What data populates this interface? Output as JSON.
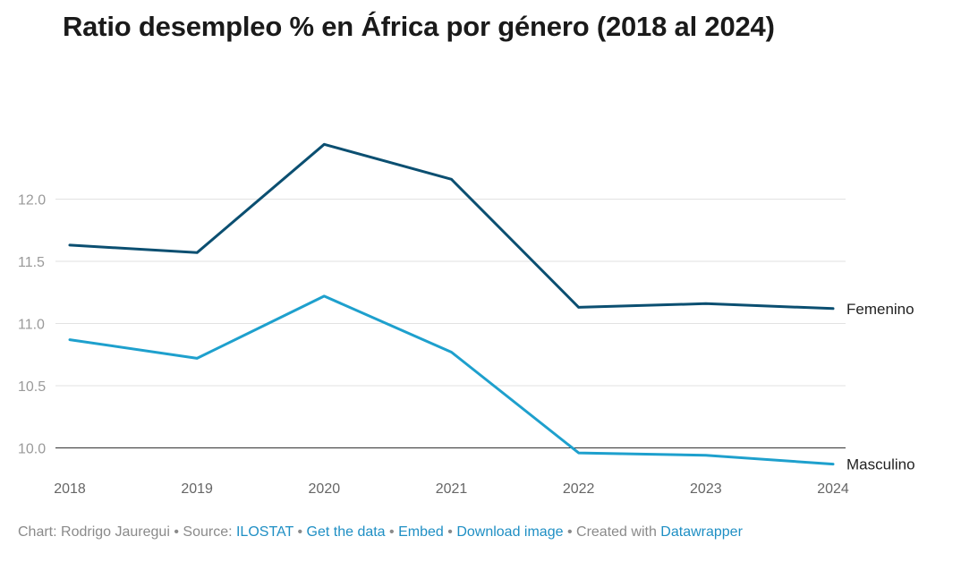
{
  "chart_data": {
    "type": "line",
    "title": "Ratio desempleo % en África por género (2018 al 2024)",
    "x": [
      "2018",
      "2019",
      "2020",
      "2021",
      "2022",
      "2023",
      "2024"
    ],
    "series": [
      {
        "name": "Femenino",
        "color": "#0b4f71",
        "values": [
          11.63,
          11.57,
          12.44,
          12.16,
          11.13,
          11.16,
          11.12
        ]
      },
      {
        "name": "Masculino",
        "color": "#1ea0cd",
        "values": [
          10.87,
          10.72,
          11.22,
          10.77,
          9.96,
          9.94,
          9.87
        ]
      }
    ],
    "yticks": [
      "10.0",
      "10.5",
      "11.0",
      "11.5",
      "12.0"
    ],
    "ylim": [
      10.0,
      12.5
    ],
    "grid": true,
    "legend": "direct labels at line ends"
  },
  "footer": {
    "chart_by": "Chart: Rodrigo Jauregui",
    "source_label": "Source:",
    "source_link": "ILOSTAT",
    "get_data": "Get the data",
    "embed": "Embed",
    "download": "Download image",
    "created_with": "Created with",
    "datawrapper": "Datawrapper",
    "separator": "•"
  }
}
